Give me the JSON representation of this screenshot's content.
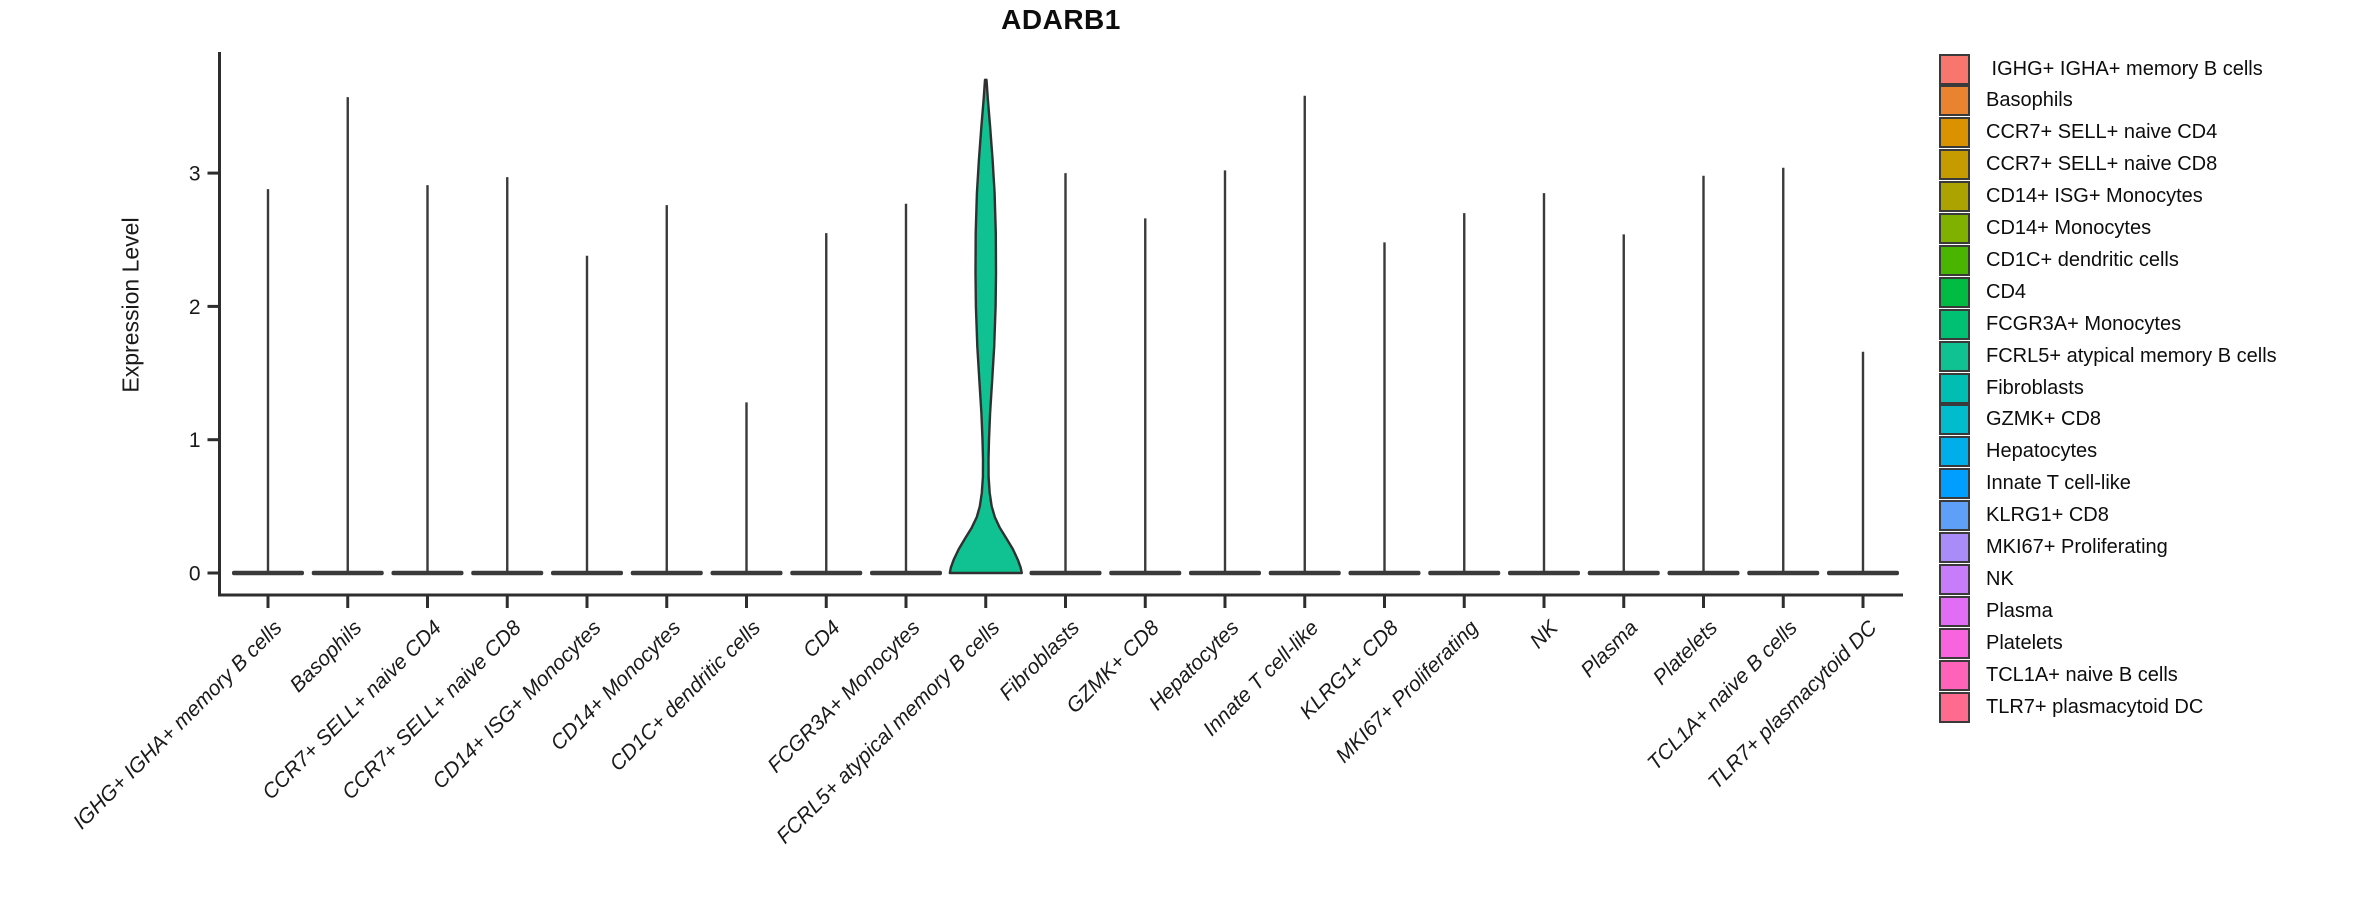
{
  "title": "ADARB1",
  "ylabel": "Expression Level",
  "chart_data": {
    "type": "violin",
    "title": "ADARB1",
    "xlabel": "",
    "ylabel": "Expression Level",
    "ylim": [
      0,
      3.9
    ],
    "yticks": [
      0,
      1,
      2,
      3
    ],
    "grid": false,
    "legend_position": "right",
    "categories": [
      "IGHG+ IGHA+ memory B cells",
      "Basophils",
      "CCR7+ SELL+ naive CD4",
      "CCR7+ SELL+ naive CD8",
      "CD14+ ISG+ Monocytes",
      "CD14+ Monocytes",
      "CD1C+ dendritic cells",
      "CD4",
      "FCGR3A+ Monocytes",
      "FCRL5+ atypical memory B cells",
      "Fibroblasts",
      "GZMK+ CD8",
      "Hepatocytes",
      "Innate T cell-like",
      "KLRG1+ CD8",
      "MKI67+ Proliferating",
      "NK",
      "Plasma",
      "Platelets",
      "TCL1A+ naive B cells",
      "TLR7+ plasmacytoid DC"
    ],
    "legend_labels": [
      " IGHG+ IGHA+ memory B cells",
      "Basophils",
      "CCR7+ SELL+ naive CD4",
      "CCR7+ SELL+ naive CD8",
      "CD14+ ISG+ Monocytes",
      "CD14+ Monocytes",
      "CD1C+ dendritic cells",
      "CD4",
      "FCGR3A+ Monocytes",
      "FCRL5+ atypical memory B cells",
      "Fibroblasts",
      "GZMK+ CD8",
      "Hepatocytes",
      "Innate T cell-like",
      "KLRG1+ CD8",
      "MKI67+ Proliferating",
      "NK",
      "Plasma",
      "Platelets",
      "TCL1A+ naive B cells",
      "TLR7+ plasmacytoid DC"
    ],
    "colors": [
      "#F8766D",
      "#E9832F",
      "#DB9200",
      "#C69B00",
      "#ACA300",
      "#80B100",
      "#49B500",
      "#00BC42",
      "#00C073",
      "#10C191",
      "#00BFB2",
      "#00BCCC",
      "#00AFE9",
      "#009FFF",
      "#5E9FF8",
      "#A98CF8",
      "#C77CFA",
      "#E26DF5",
      "#F863DE",
      "#FF62B9",
      "#FF6A8F"
    ],
    "max_expression": [
      2.88,
      3.57,
      2.91,
      2.97,
      2.38,
      2.76,
      1.28,
      2.55,
      2.77,
      3.7,
      3.0,
      2.66,
      3.02,
      3.58,
      2.48,
      2.7,
      2.85,
      2.54,
      2.98,
      3.04,
      1.66
    ],
    "expressed_category": "FCRL5+ atypical memory B cells",
    "expressed_index": 9,
    "violin_profile": [
      [
        3.7,
        0.02
      ],
      [
        3.55,
        0.06
      ],
      [
        3.35,
        0.12
      ],
      [
        3.1,
        0.19
      ],
      [
        2.85,
        0.245
      ],
      [
        2.55,
        0.28
      ],
      [
        2.25,
        0.285
      ],
      [
        2.0,
        0.275
      ],
      [
        1.7,
        0.235
      ],
      [
        1.45,
        0.18
      ],
      [
        1.2,
        0.12
      ],
      [
        1.0,
        0.09
      ],
      [
        0.85,
        0.075
      ],
      [
        0.72,
        0.08
      ],
      [
        0.6,
        0.11
      ],
      [
        0.5,
        0.165
      ],
      [
        0.42,
        0.25
      ],
      [
        0.34,
        0.39
      ],
      [
        0.26,
        0.57
      ],
      [
        0.18,
        0.75
      ],
      [
        0.1,
        0.89
      ],
      [
        0.04,
        0.97
      ],
      [
        0.0,
        1.0
      ]
    ],
    "ink_color": "#2e2e2e",
    "spike_color": "#3a3a3a"
  }
}
